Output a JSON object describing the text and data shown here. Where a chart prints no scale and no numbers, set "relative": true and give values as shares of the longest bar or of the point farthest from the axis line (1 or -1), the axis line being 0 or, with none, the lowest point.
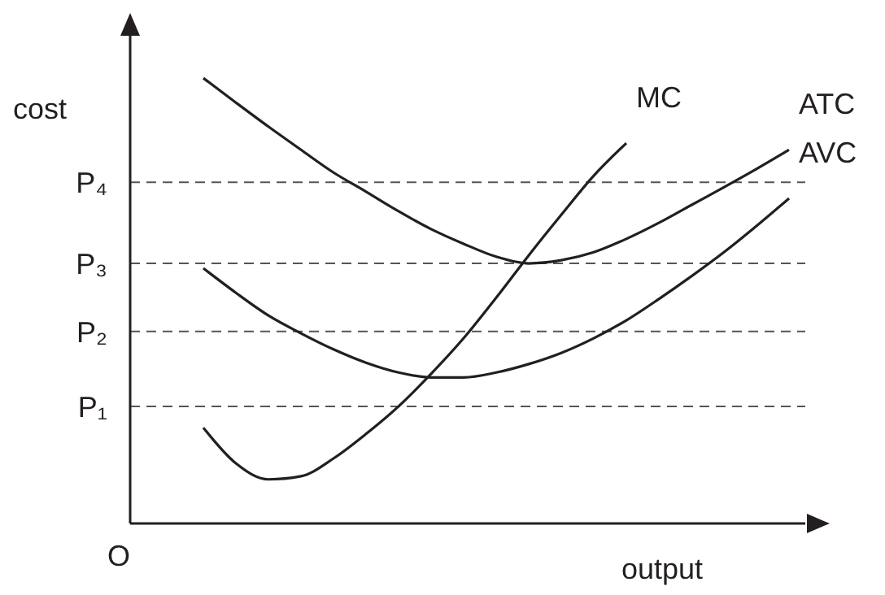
{
  "chart_data": {
    "type": "line",
    "relative": true,
    "xlabel": "output",
    "ylabel": "cost",
    "annotations": [
      "O"
    ],
    "legend": false,
    "marker": "none",
    "line_style": "solid",
    "categories": [
      null,
      null,
      null,
      null,
      null,
      null,
      null,
      null,
      null,
      null,
      null,
      null,
      null,
      null,
      null,
      null,
      null,
      null,
      null
    ],
    "series": [
      {
        "name": "MC",
        "color": "#231f20",
        "values": [
          0.215,
          0.135,
          0.099,
          0.106,
          0.146,
          0.201,
          0.263,
          0.336,
          0.416,
          0.507,
          0.602,
          0.693,
          0.781,
          0.854,
          null,
          null,
          null,
          null,
          null
        ]
      },
      {
        "name": "ATC",
        "color": "#231f20",
        "values": [
          1.0,
          0.945,
          0.891,
          0.839,
          0.788,
          0.745,
          0.701,
          0.661,
          0.628,
          0.599,
          0.584,
          0.591,
          0.609,
          0.639,
          0.675,
          0.715,
          0.755,
          0.796,
          0.839
        ]
      },
      {
        "name": "AVC",
        "color": "#231f20",
        "values": [
          0.573,
          0.518,
          0.467,
          0.427,
          0.391,
          0.361,
          0.339,
          0.328,
          0.328,
          0.339,
          0.358,
          0.383,
          0.416,
          0.456,
          0.504,
          0.555,
          0.609,
          0.668,
          0.73
        ]
      }
    ],
    "ref_lines": [
      {
        "axis": "y",
        "value": 0.766,
        "label": "P₄",
        "color": "#555555",
        "line_style": "dashed"
      },
      {
        "axis": "y",
        "value": 0.584,
        "label": "P₃",
        "color": "#555555",
        "line_style": "dashed"
      },
      {
        "axis": "y",
        "value": 0.431,
        "label": "P₂",
        "color": "#555555",
        "line_style": "dashed"
      },
      {
        "axis": "y",
        "value": 0.263,
        "label": "P₁",
        "color": "#555555",
        "line_style": "dashed"
      }
    ]
  }
}
